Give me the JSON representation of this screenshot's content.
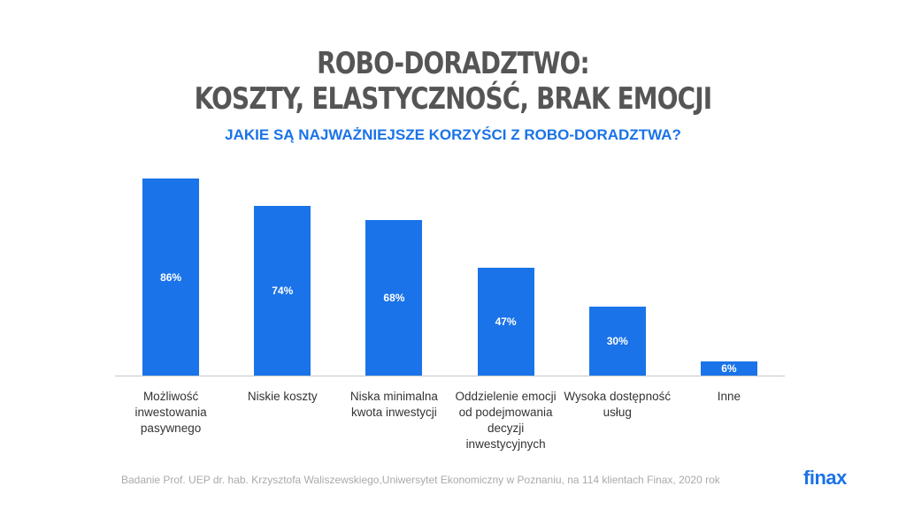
{
  "chart_data": {
    "type": "bar",
    "title": [
      "ROBO-DORADZTWO:",
      "KOSZTY, ELASTYCZNOŚĆ, BRAK EMOCJI"
    ],
    "subtitle": "JAKIE SĄ NAJWAŻNIEJSZE KORZYŚCI Z ROBO-DORADZTWA?",
    "categories": [
      "Możliwość inwestowania pasywnego",
      "Niskie koszty",
      "Niska minimalna kwota inwestycji",
      "Oddzielenie emocji od podejmowania decyzji inwestycyjnych",
      "Wysoka dostępność usług",
      "Inne"
    ],
    "values": [
      86,
      74,
      68,
      47,
      30,
      6
    ],
    "value_labels": [
      "86%",
      "74%",
      "68%",
      "47%",
      "30%",
      "6%"
    ],
    "color": "#1a73e8",
    "source": "Badanie Prof. UEP dr. hab. Krzysztofa Waliszewskiego,Uniwersytet Ekonomiczny w Poznaniu, na 114 klientach Finax, 2020 rok",
    "logo": "finax"
  }
}
